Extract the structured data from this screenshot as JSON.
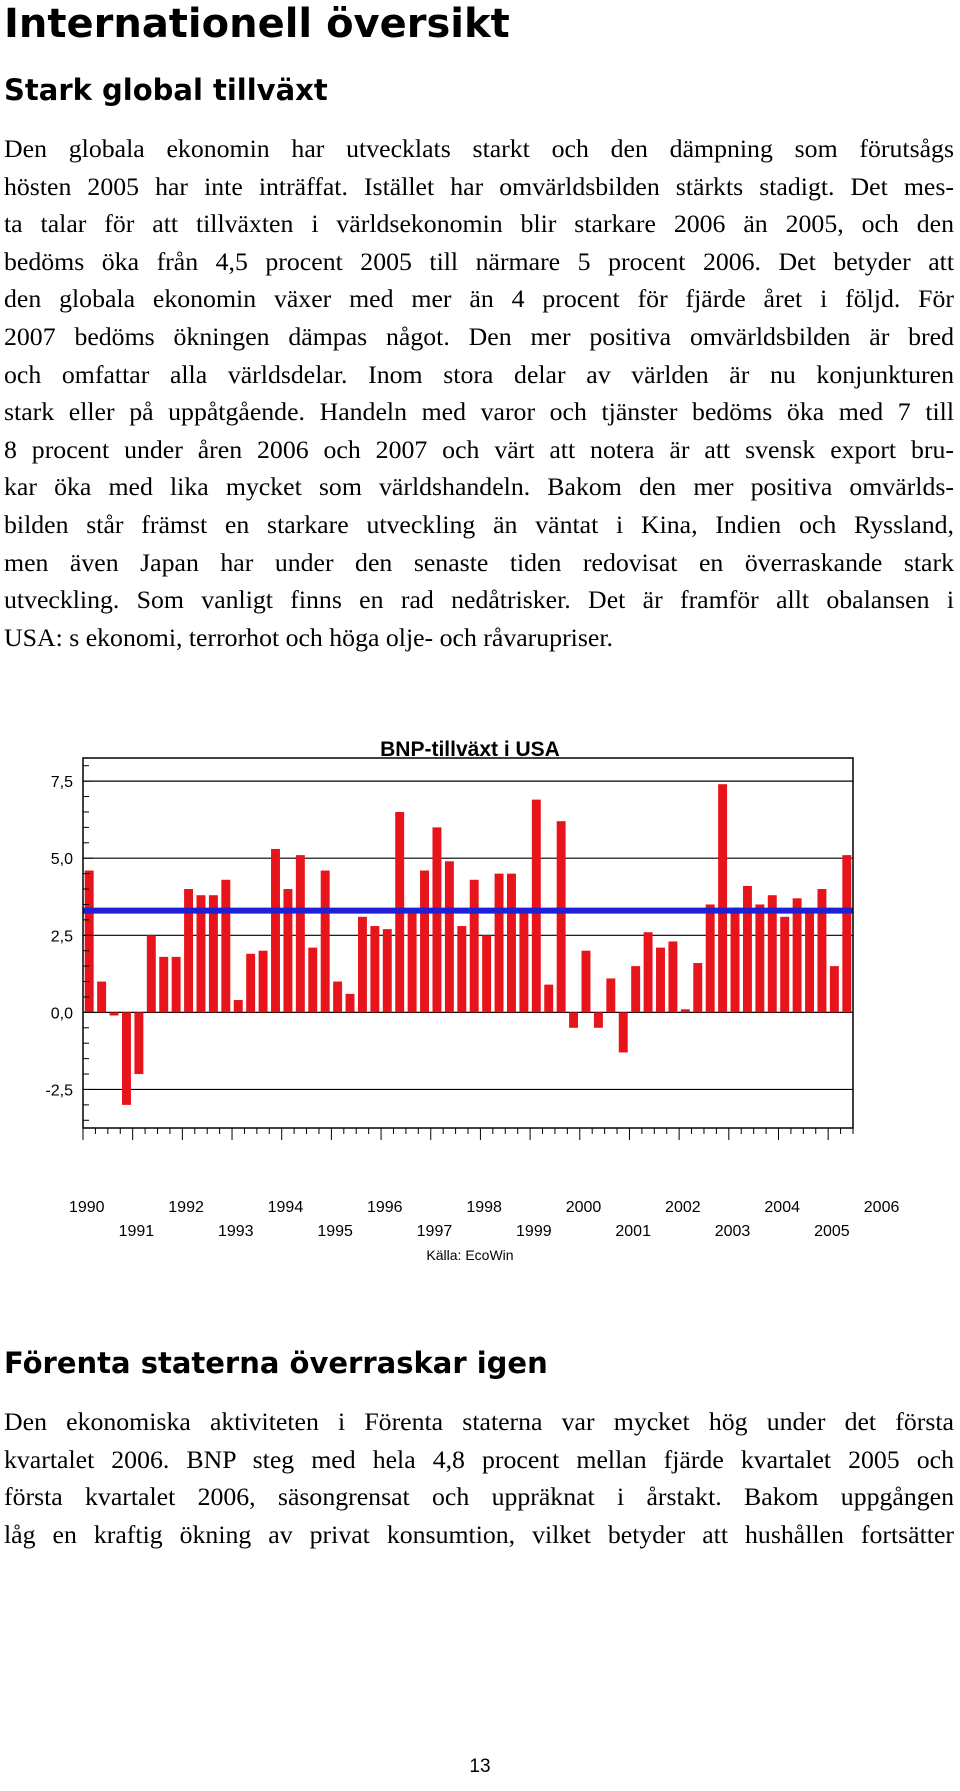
{
  "page": {
    "heading": "Internationell översikt",
    "section1": {
      "heading": "Stark global tillväxt",
      "lines": [
        "Den globala ekonomin har utvecklats starkt och den dämpning som förutsågs",
        "hösten 2005 har inte inträffat. Istället har omvärldsbilden stärkts stadigt. Det mes-",
        "ta talar för att tillväxten i världsekonomin blir starkare 2006 än 2005, och den",
        "bedöms öka från 4,5 procent 2005 till närmare 5 procent 2006. Det betyder att",
        "den globala ekonomin växer med mer än 4 procent för fjärde året i följd. För",
        "2007 bedöms ökningen dämpas något. Den mer positiva omvärldsbilden är bred",
        "och omfattar alla världsdelar. Inom stora delar av världen är nu konjunkturen",
        "stark eller på uppåtgående. Handeln med varor och tjänster bedöms öka med 7 till",
        "8 procent under åren 2006 och 2007 och värt att notera är att svensk export bru-",
        "kar öka med lika mycket som världshandeln. Bakom den mer positiva omvärlds-",
        "bilden står främst en starkare utveckling än väntat i Kina, Indien och Ryssland,",
        "men även Japan har under den senaste tiden redovisat en överraskande stark",
        "utveckling. Som vanligt finns en rad nedåtrisker. Det är framför allt obalansen i",
        "USA: s ekonomi, terrorhot och höga olje- och råvarupriser."
      ]
    },
    "section2": {
      "heading": "Förenta staterna överraskar igen",
      "lines": [
        "Den ekonomiska aktiviteten i Förenta staterna var mycket hög under det första",
        "kvartalet 2006. BNP steg med hela 4,8 procent mellan fjärde kvartalet 2005 och",
        "första kvartalet 2006, säsongrensat och uppräknat i årstakt. Bakom uppgången",
        "låg en kraftig ökning av privat konsumtion, vilket betyder att hushållen fortsätter"
      ]
    },
    "page_number": "13"
  },
  "chart_data": {
    "type": "bar",
    "title": "BNP-tillväxt i USA",
    "source": "Källa: EcoWin",
    "bar_color": "#e8141c",
    "line_color": "#1f1fd6",
    "ylim": [
      -3.75,
      8.25
    ],
    "y_ticks": [
      "7,5",
      "5,0",
      "2,5",
      "0,0",
      "-2,5"
    ],
    "y_tick_values": [
      7.5,
      5.0,
      2.5,
      0.0,
      -2.5
    ],
    "x_labels_top": [
      "1990",
      "1992",
      "1994",
      "1996",
      "1998",
      "2000",
      "2002",
      "2004",
      "2006"
    ],
    "x_labels_bottom": [
      "1991",
      "1993",
      "1995",
      "1997",
      "1999",
      "2001",
      "2003",
      "2005"
    ],
    "x_start_year": 1990,
    "frequency": "quarterly",
    "average_line": 3.3,
    "values": [
      4.6,
      1.0,
      -0.1,
      -3.0,
      -2.0,
      2.5,
      1.8,
      1.8,
      4.0,
      3.8,
      3.8,
      4.3,
      0.4,
      1.9,
      2.0,
      5.3,
      4.0,
      5.1,
      2.1,
      4.6,
      1.0,
      0.6,
      3.1,
      2.8,
      2.7,
      6.5,
      3.3,
      4.6,
      6.0,
      4.9,
      2.8,
      4.3,
      2.5,
      4.5,
      4.5,
      3.3,
      6.9,
      0.9,
      6.2,
      -0.5,
      2.0,
      -0.5,
      1.1,
      -1.3,
      1.5,
      2.6,
      2.1,
      2.3,
      0.1,
      1.6,
      3.5,
      7.4,
      3.4,
      4.1,
      3.5,
      3.8,
      3.1,
      3.7,
      3.3,
      4.0,
      1.5,
      5.1
    ]
  }
}
